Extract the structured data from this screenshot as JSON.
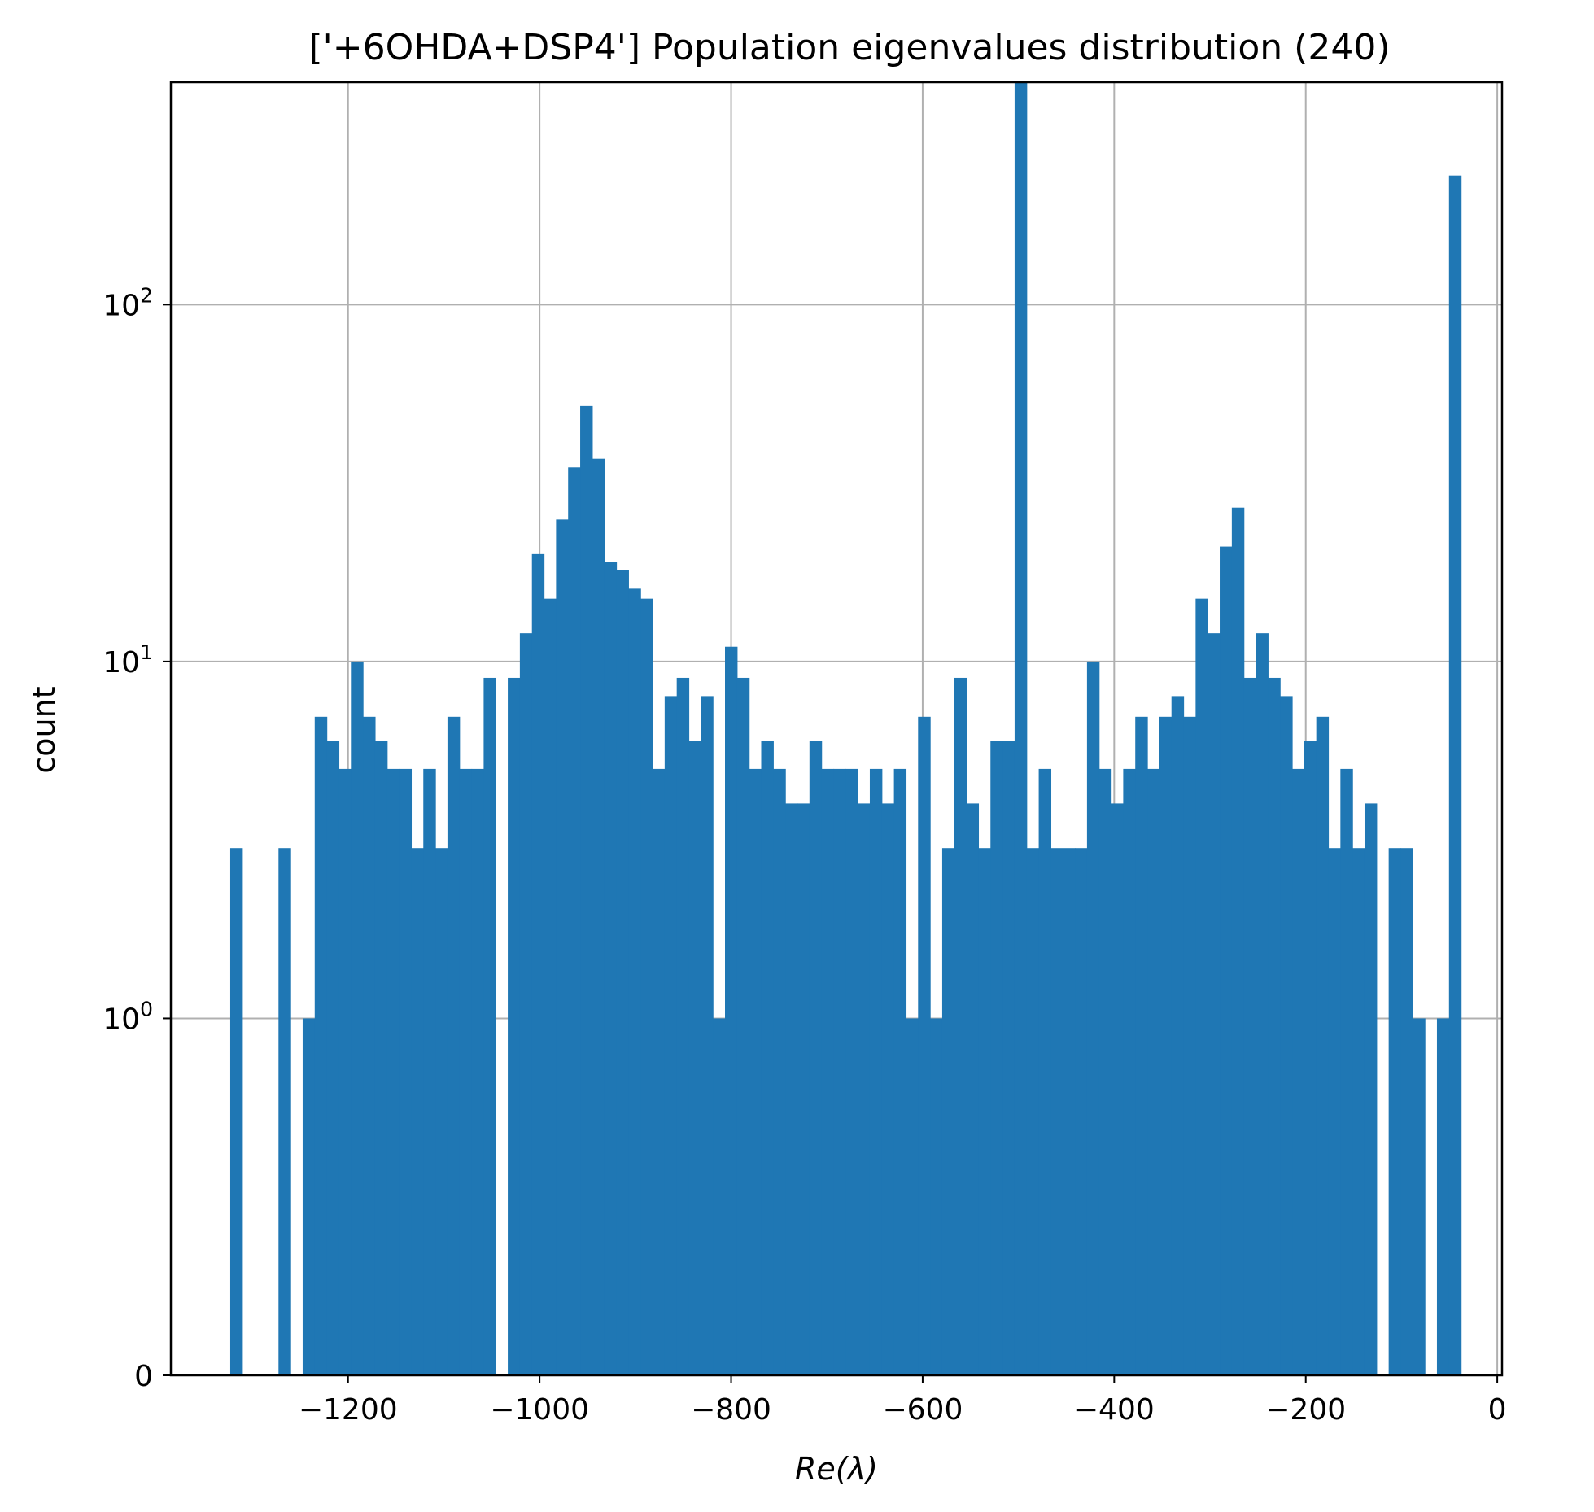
{
  "chart_data": {
    "type": "bar",
    "title": "['+6OHDA+DSP4'] Population eigenvalues distribution (240)",
    "xlabel": "Re(λ)",
    "ylabel": "count",
    "yscale": "symlog",
    "xlim": [
      -1385,
      5
    ],
    "ylim": [
      0,
      420
    ],
    "grid": true,
    "bar_color": "#1f77b4",
    "xticks": [
      -1200,
      -1000,
      -800,
      -600,
      -400,
      -200,
      0
    ],
    "xtick_labels": [
      "−1200",
      "−1000",
      "−800",
      "−600",
      "−400",
      "−200",
      "0"
    ],
    "yticks": [
      {
        "value": 0,
        "base": "0",
        "exp": ""
      },
      {
        "value": 1,
        "base": "10",
        "exp": "0"
      },
      {
        "value": 10,
        "base": "10",
        "exp": "1"
      },
      {
        "value": 100,
        "base": "10",
        "exp": "2"
      }
    ],
    "bin_start": -1323.0,
    "bin_width": 12.6,
    "counts": [
      3,
      0,
      0,
      0,
      3,
      0,
      1,
      7,
      6,
      5,
      10,
      7,
      6,
      5,
      5,
      3,
      5,
      3,
      7,
      5,
      5,
      9,
      0,
      9,
      12,
      20,
      15,
      25,
      35,
      52,
      37,
      19,
      18,
      16,
      15,
      5,
      8,
      9,
      6,
      8,
      1,
      11,
      9,
      5,
      6,
      5,
      4,
      4,
      6,
      5,
      5,
      5,
      4,
      5,
      4,
      5,
      1,
      7,
      1,
      3,
      9,
      4,
      3,
      6,
      6,
      420,
      3,
      5,
      3,
      3,
      3,
      10,
      5,
      4,
      5,
      7,
      5,
      7,
      8,
      7,
      15,
      12,
      21,
      27,
      9,
      12,
      9,
      8,
      5,
      6,
      7,
      3,
      5,
      3,
      4,
      0,
      3,
      3,
      1,
      0,
      1,
      230
    ]
  }
}
